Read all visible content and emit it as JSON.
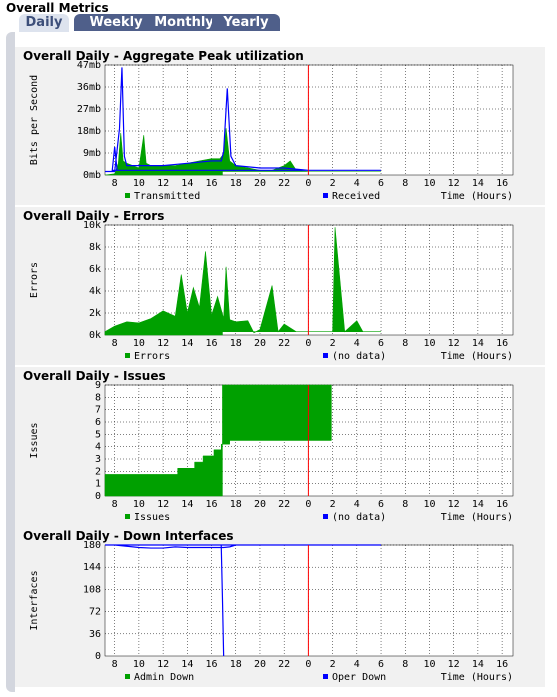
{
  "page_title": "Overall Metrics",
  "tabs": [
    {
      "label": "Daily",
      "active": true
    },
    {
      "label": "Weekly",
      "active": false
    },
    {
      "label": "Monthly",
      "active": false
    },
    {
      "label": "Yearly",
      "active": false
    }
  ],
  "colors": {
    "tab_bg": "#4f5f8a",
    "plot_bg": "#ffffff",
    "panel_bg": "#f1f1f1",
    "series_green": "#00a000",
    "series_blue": "#0000ff",
    "now_marker": "#ff0000"
  },
  "chart_data": [
    {
      "type": "area",
      "title": "Overall Daily - Aggregate Peak utilization",
      "ylabel": "Bits per Second",
      "xlabel": "Time (Hours)",
      "x_ticks": [
        "8",
        "10",
        "12",
        "14",
        "16",
        "18",
        "20",
        "22",
        "0",
        "2",
        "4",
        "6",
        "8",
        "10",
        "12",
        "14",
        "16"
      ],
      "y_ticks": [
        "0mb",
        "9mb",
        "18mb",
        "27mb",
        "36mb",
        "47mb"
      ],
      "ylim": [
        0,
        47
      ],
      "unit": "mb",
      "now_hour": 0,
      "grid": true,
      "legend": [
        {
          "label": "Transmitted",
          "color": "#00a000"
        },
        {
          "label": "Received",
          "color": "#0000ff"
        }
      ],
      "series": [
        {
          "name": "Transmitted",
          "color": "#00a000",
          "style": "area",
          "x": [
            7.2,
            8,
            8.3,
            8.5,
            8.7,
            9,
            10,
            10.4,
            10.6,
            11,
            11.5,
            12,
            13,
            14,
            15,
            16,
            16.7,
            17,
            17.2,
            17.5,
            18,
            19,
            20,
            21,
            21.5,
            22,
            22.5,
            23,
            0,
            1,
            2,
            4,
            6,
            8,
            10,
            12,
            14,
            16,
            16.9
          ],
          "y": [
            0,
            0.5,
            5,
            18,
            6,
            5,
            3,
            17,
            5,
            4,
            4,
            4,
            4,
            5,
            6,
            7,
            7,
            9,
            20,
            6,
            4,
            3,
            2,
            2,
            3,
            4,
            6,
            2,
            1.5,
            1.5,
            1.5,
            1.5,
            1.5,
            1.5,
            1.5,
            1.5,
            1.5,
            1.5,
            1.5
          ]
        },
        {
          "name": "Received",
          "color": "#0000ff",
          "style": "line",
          "x": [
            7.2,
            8,
            8.4,
            8.6,
            8.8,
            9,
            10,
            12,
            14,
            16,
            16.8,
            17,
            17.3,
            17.6,
            18,
            20,
            22,
            0,
            2,
            4,
            6,
            7.8,
            8,
            8.2,
            10,
            12,
            14,
            16,
            16.9
          ],
          "y": [
            1.5,
            1.5,
            20,
            46,
            8,
            4,
            4,
            4,
            5,
            6,
            6,
            10,
            37,
            8,
            4,
            3,
            3,
            2,
            2,
            2,
            2,
            2,
            12,
            2,
            2,
            2,
            2,
            2,
            2
          ]
        }
      ]
    },
    {
      "type": "area",
      "title": "Overall Daily - Errors",
      "ylabel": "Errors",
      "xlabel": "Time (Hours)",
      "x_ticks": [
        "8",
        "10",
        "12",
        "14",
        "16",
        "18",
        "20",
        "22",
        "0",
        "2",
        "4",
        "6",
        "8",
        "10",
        "12",
        "14",
        "16"
      ],
      "y_ticks": [
        "0k",
        "2k",
        "4k",
        "6k",
        "8k",
        "10k"
      ],
      "ylim": [
        0,
        10000
      ],
      "now_hour": 0,
      "grid": true,
      "legend": [
        {
          "label": "Errors",
          "color": "#00a000"
        },
        {
          "label": "(no data)",
          "color": "#0000ff"
        }
      ],
      "series": [
        {
          "name": "Errors",
          "color": "#00a000",
          "style": "area",
          "x": [
            7.2,
            8,
            9,
            10,
            11,
            12,
            13,
            13.5,
            14,
            14.5,
            15,
            15.5,
            16,
            16.5,
            17,
            17.2,
            17.5,
            18,
            19,
            19.5,
            20,
            21,
            21.5,
            22,
            23,
            0,
            1,
            2,
            2.2,
            3,
            4,
            4.5,
            6,
            8,
            9,
            10,
            12,
            13,
            14,
            16,
            16.9
          ],
          "y": [
            300,
            800,
            1200,
            1100,
            1500,
            2200,
            1700,
            5500,
            2000,
            4300,
            2500,
            7600,
            1800,
            3500,
            1500,
            6200,
            1400,
            1200,
            1300,
            200,
            500,
            4500,
            300,
            1000,
            300,
            300,
            300,
            300,
            9800,
            300,
            1300,
            300,
            300,
            300,
            600,
            300,
            300,
            600,
            300,
            300,
            300
          ]
        }
      ]
    },
    {
      "type": "area",
      "title": "Overall Daily - Issues",
      "ylabel": "Issues",
      "xlabel": "Time (Hours)",
      "x_ticks": [
        "8",
        "10",
        "12",
        "14",
        "16",
        "18",
        "20",
        "22",
        "0",
        "2",
        "4",
        "6",
        "8",
        "10",
        "12",
        "14",
        "16"
      ],
      "y_ticks": [
        "0",
        "1",
        "2",
        "3",
        "4",
        "5",
        "6",
        "7",
        "8",
        "9"
      ],
      "ylim": [
        0,
        9
      ],
      "now_hour": 0,
      "grid": true,
      "legend": [
        {
          "label": "Issues",
          "color": "#00a000"
        },
        {
          "label": "(no data)",
          "color": "#0000ff"
        }
      ],
      "series": [
        {
          "name": "Issues",
          "color": "#00a000",
          "style": "step",
          "x": [
            7.2,
            13.2,
            14.6,
            15.3,
            16.2,
            16.8,
            17.5,
            22,
            1.9,
            16.9
          ],
          "y": [
            1.75,
            2.25,
            2.75,
            3.25,
            3.75,
            4.2,
            4.5,
            4.5,
            9,
            9
          ]
        }
      ]
    },
    {
      "type": "line",
      "title": "Overall Daily - Down Interfaces",
      "ylabel": "Interfaces",
      "xlabel": "Time (Hours)",
      "x_ticks": [
        "8",
        "10",
        "12",
        "14",
        "16",
        "18",
        "20",
        "22",
        "0",
        "2",
        "4",
        "6",
        "8",
        "10",
        "12",
        "14",
        "16"
      ],
      "y_ticks": [
        "0",
        "36",
        "72",
        "108",
        "144",
        "180"
      ],
      "ylim": [
        0,
        180
      ],
      "now_hour": 0,
      "grid": true,
      "legend": [
        {
          "label": "Admin Down",
          "color": "#00a000"
        },
        {
          "label": "Oper Down",
          "color": "#0000ff"
        }
      ],
      "series": [
        {
          "name": "Oper Down",
          "color": "#0000ff",
          "style": "line",
          "x": [
            7.2,
            8,
            9,
            10,
            11,
            12,
            13,
            14,
            15,
            16,
            17,
            17.5,
            18,
            20,
            22,
            0,
            2,
            4,
            6,
            8,
            10,
            12,
            14,
            16,
            16.8,
            16.9,
            17
          ],
          "y": [
            180,
            180,
            178,
            176,
            175,
            175,
            177,
            176,
            176,
            176,
            176,
            177,
            180,
            180,
            180,
            180,
            180,
            180,
            180,
            180,
            180,
            180,
            180,
            180,
            180,
            95,
            0
          ]
        }
      ]
    }
  ]
}
